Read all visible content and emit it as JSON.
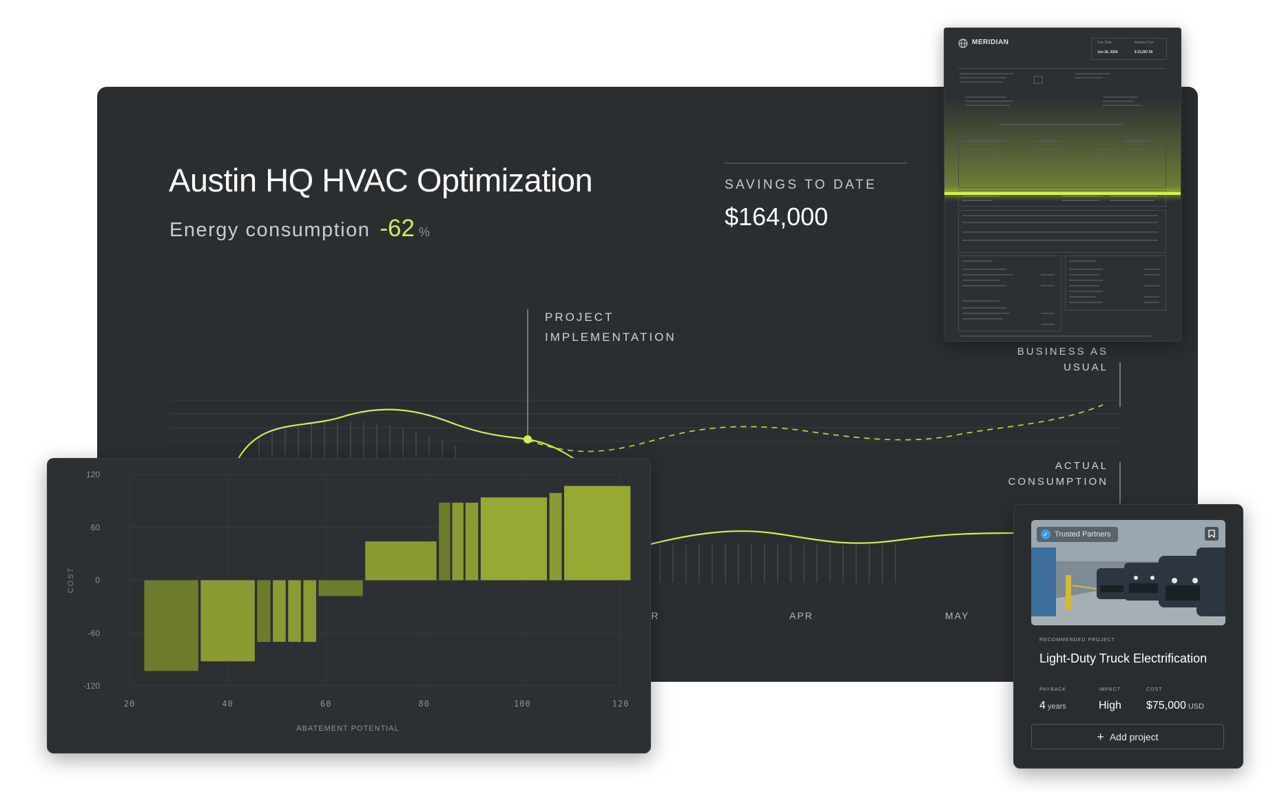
{
  "project": {
    "title": "Austin HQ HVAC Optimization",
    "metric_label": "Energy consumption",
    "metric_value": "-62",
    "metric_unit": "%"
  },
  "savings": {
    "label": "SAVINGS TO DATE",
    "value": "$164,000"
  },
  "timeline": {
    "implementation_label_1": "PROJECT",
    "implementation_label_2": "IMPLEMENTATION",
    "bau_label_1": "BUSINESS AS",
    "bau_label_2": "USUAL",
    "actual_label_1": "ACTUAL",
    "actual_label_2": "CONSUMPTION",
    "months": [
      "AR",
      "APR",
      "MAY"
    ]
  },
  "invoice": {
    "brand": "MERIDIAN",
    "due_date_label": "Due Date",
    "amount_due_label": "Amount Due",
    "due_date": "Jun 26, 2026",
    "amount_due": "$ 23,287.50"
  },
  "chart_data": {
    "type": "bar",
    "title": "",
    "xlabel": "ABATEMENT POTENTIAL",
    "ylabel": "COST",
    "xlim": [
      20,
      120
    ],
    "ylim": [
      -120,
      120
    ],
    "xticks": [
      "20",
      "40",
      "60",
      "80",
      "100",
      "120"
    ],
    "yticks": [
      "120",
      "60",
      "0",
      "-60",
      "-120"
    ],
    "bars": [
      {
        "x0": 23,
        "x1": 34,
        "value": -103,
        "color": "#6d7b2c"
      },
      {
        "x0": 34.5,
        "x1": 45.5,
        "value": -92,
        "color": "#8b9a33"
      },
      {
        "x0": 46,
        "x1": 48.7,
        "value": -70,
        "color": "#6d7b2c"
      },
      {
        "x0": 49.2,
        "x1": 51.8,
        "value": -70,
        "color": "#8b9a33"
      },
      {
        "x0": 52.3,
        "x1": 54.9,
        "value": -70,
        "color": "#8b9a33"
      },
      {
        "x0": 55.4,
        "x1": 58,
        "value": -70,
        "color": "#8b9a33"
      },
      {
        "x0": 58.5,
        "x1": 67.5,
        "value": -18,
        "color": "#6d7b2c"
      },
      {
        "x0": 68,
        "x1": 82.5,
        "value": 44,
        "color": "#8b9a33"
      },
      {
        "x0": 83,
        "x1": 85.3,
        "value": 88,
        "color": "#6d7b2c"
      },
      {
        "x0": 85.7,
        "x1": 88,
        "value": 88,
        "color": "#8b9a33"
      },
      {
        "x0": 88.4,
        "x1": 91,
        "value": 88,
        "color": "#8b9a33"
      },
      {
        "x0": 91.5,
        "x1": 105,
        "value": 94,
        "color": "#97a835"
      },
      {
        "x0": 105.5,
        "x1": 108,
        "value": 99,
        "color": "#8b9a33"
      },
      {
        "x0": 108.5,
        "x1": 122,
        "value": 107,
        "color": "#97a835"
      }
    ]
  },
  "recommended": {
    "badge": "Trusted Partners",
    "kicker": "RECOMMENDED PROJECT",
    "title": "Light-Duty Truck Electrification",
    "payback_label": "PAYBACK",
    "payback_value": "4",
    "payback_unit": "years",
    "impact_label": "IMPACT",
    "impact_value": "High",
    "cost_label": "COST",
    "cost_value": "$75,000",
    "cost_unit": "USD",
    "button_label": "Add project"
  },
  "colors": {
    "accent": "#d3ec55",
    "panel": "#2b2e31",
    "bar_dark": "#6d7b2c",
    "bar_light": "#97a835"
  }
}
